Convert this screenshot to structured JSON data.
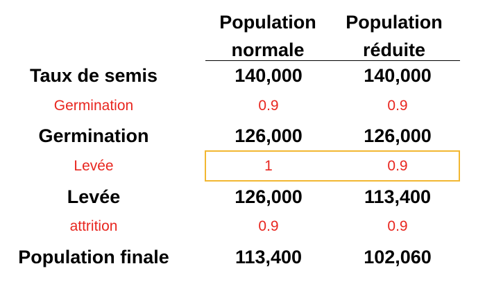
{
  "colors": {
    "text": "#000000",
    "factor": "#e8261f",
    "highlight_border": "#f2b731"
  },
  "headers": {
    "col1_line1": "Population",
    "col1_line2": "normale",
    "col2_line1": "Population",
    "col2_line2": "réduite"
  },
  "rows": [
    {
      "label": "Taux de semis",
      "normal": "140,000",
      "reduced": "140,000",
      "kind": "main"
    },
    {
      "label": "Germination",
      "normal": "0.9",
      "reduced": "0.9",
      "kind": "factor"
    },
    {
      "label": "Germination",
      "normal": "126,000",
      "reduced": "126,000",
      "kind": "main"
    },
    {
      "label": "Levée",
      "normal": "1",
      "reduced": "0.9",
      "kind": "factor",
      "highlighted": true
    },
    {
      "label": "Levée",
      "normal": "126,000",
      "reduced": "113,400",
      "kind": "main"
    },
    {
      "label": "attrition",
      "normal": "0.9",
      "reduced": "0.9",
      "kind": "factor"
    },
    {
      "label": "Population finale",
      "normal": "113,400",
      "reduced": "102,060",
      "kind": "main"
    }
  ]
}
